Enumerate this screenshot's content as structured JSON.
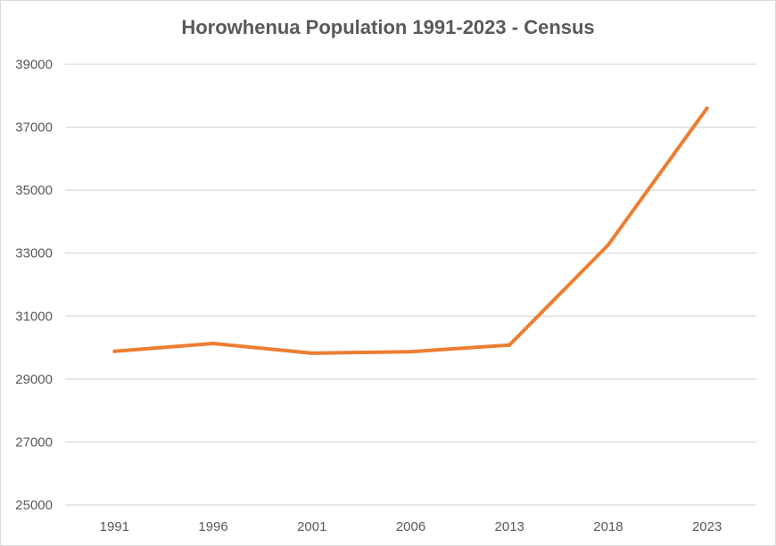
{
  "chart_data": {
    "type": "line",
    "title": "Horowhenua Population 1991-2023 - Census",
    "xlabel": "",
    "ylabel": "",
    "categories": [
      "1991",
      "1996",
      "2001",
      "2006",
      "2013",
      "2018",
      "2023"
    ],
    "series": [
      {
        "values": [
          29880,
          30130,
          29820,
          29870,
          30080,
          33260,
          37600
        ]
      }
    ],
    "ylim": [
      25000,
      39000
    ],
    "yticks": [
      "25000",
      "27000",
      "29000",
      "31000",
      "33000",
      "35000",
      "37000",
      "39000"
    ],
    "grid": true,
    "legend": "none",
    "colors": {
      "line": "#ed7d31",
      "grid": "#d9d9d9",
      "text": "#595959"
    }
  }
}
